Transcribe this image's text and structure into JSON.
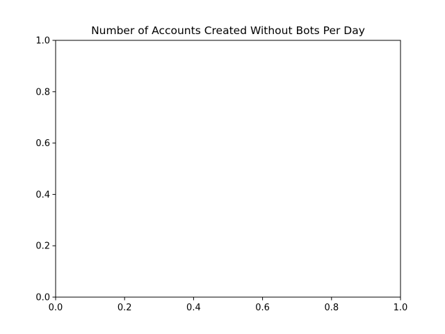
{
  "chart_data": {
    "type": "line",
    "title": "Number of Accounts Created Without Bots Per Day",
    "xlabel": "",
    "ylabel": "",
    "xlim": [
      0.0,
      1.0
    ],
    "ylim": [
      0.0,
      1.0
    ],
    "xticks": [
      0.0,
      0.2,
      0.4,
      0.6,
      0.8,
      1.0
    ],
    "yticks": [
      0.0,
      0.2,
      0.4,
      0.6,
      0.8,
      1.0
    ],
    "xtick_labels": [
      "0.0",
      "0.2",
      "0.4",
      "0.6",
      "0.8",
      "1.0"
    ],
    "ytick_labels": [
      "0.0",
      "0.2",
      "0.4",
      "0.6",
      "0.8",
      "1.0"
    ],
    "series": [],
    "grid": false,
    "legend": "none",
    "colors": {
      "axes": "#000000",
      "background": "#ffffff",
      "text": "#000000"
    }
  }
}
